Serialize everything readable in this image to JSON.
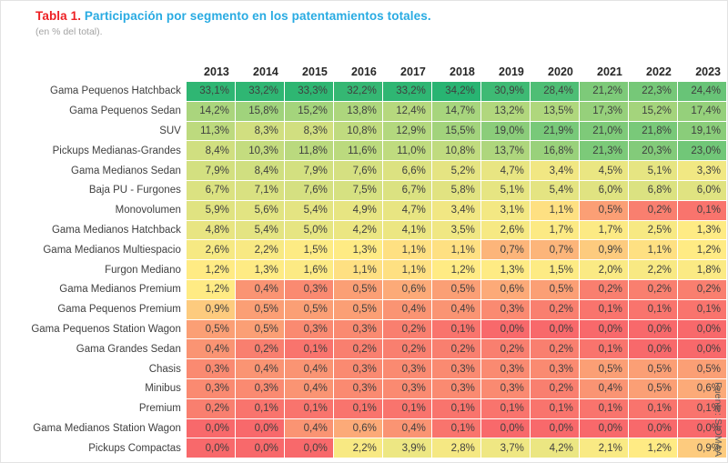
{
  "header": {
    "title_prefix": "Tabla 1.",
    "title_text": " Participación por segmento en los patentamientos totales.",
    "subtitle": "(en % del total)."
  },
  "footer": {
    "source": "Fuente: SIOMAA"
  },
  "colors": {
    "title_prefix": "#ed2024",
    "title_text": "#29abe2",
    "subtitle": "#a3a3a3",
    "source_text": "#5a5a5a",
    "cell_text": "#3f3f3f",
    "year_text": "#262626",
    "scale_min": "#F8696B",
    "scale_mid": "#FFEB84",
    "scale_max": "#28B472"
  },
  "chart_data": {
    "type": "heatmap",
    "title": "Tabla 1. Participación por segmento en los patentamientos totales.",
    "subtitle": "(en % del total).",
    "source": "Fuente: SIOMAA",
    "value_format": "percent_comma_1dp",
    "color_scale": {
      "min_value": 0.0,
      "mid_value": 1.2,
      "max_value": 34.2,
      "min_color": "#F8696B",
      "mid_color": "#FFEB84",
      "max_color": "#28B472"
    },
    "categories": [
      "2013",
      "2014",
      "2015",
      "2016",
      "2017",
      "2018",
      "2019",
      "2020",
      "2021",
      "2022",
      "2023"
    ],
    "rows": [
      {
        "label": "Gama Pequenos Hatchback",
        "values": [
          33.1,
          33.2,
          33.3,
          32.2,
          33.2,
          34.2,
          30.9,
          28.4,
          21.2,
          22.3,
          24.4
        ]
      },
      {
        "label": "Gama Pequenos Sedan",
        "values": [
          14.2,
          15.8,
          15.2,
          13.8,
          12.4,
          14.7,
          13.2,
          13.5,
          17.3,
          15.2,
          17.4
        ]
      },
      {
        "label": "SUV",
        "values": [
          11.3,
          8.3,
          8.3,
          10.8,
          12.9,
          15.5,
          19.0,
          21.9,
          21.0,
          21.8,
          19.1
        ]
      },
      {
        "label": "Pickups Medianas-Grandes",
        "values": [
          8.4,
          10.3,
          11.8,
          11.6,
          11.0,
          10.8,
          13.7,
          16.8,
          21.3,
          20.3,
          23.0
        ]
      },
      {
        "label": "Gama Medianos Sedan",
        "values": [
          7.9,
          8.4,
          7.9,
          7.6,
          6.6,
          5.2,
          4.7,
          3.4,
          4.5,
          5.1,
          3.3
        ]
      },
      {
        "label": "Baja PU - Furgones",
        "values": [
          6.7,
          7.1,
          7.6,
          7.5,
          6.7,
          5.8,
          5.1,
          5.4,
          6.0,
          6.8,
          6.0
        ]
      },
      {
        "label": "Monovolumen",
        "values": [
          5.9,
          5.6,
          5.4,
          4.9,
          4.7,
          3.4,
          3.1,
          1.1,
          0.5,
          0.2,
          0.1
        ]
      },
      {
        "label": "Gama Medianos Hatchback",
        "values": [
          4.8,
          5.4,
          5.0,
          4.2,
          4.1,
          3.5,
          2.6,
          1.7,
          1.7,
          2.5,
          1.3
        ]
      },
      {
        "label": "Gama Medianos Multiespacio",
        "values": [
          2.6,
          2.2,
          1.5,
          1.3,
          1.1,
          1.1,
          0.7,
          0.7,
          0.9,
          1.1,
          1.2
        ]
      },
      {
        "label": "Furgon Mediano",
        "values": [
          1.2,
          1.3,
          1.6,
          1.1,
          1.1,
          1.2,
          1.3,
          1.5,
          2.0,
          2.2,
          1.8
        ]
      },
      {
        "label": "Gama Medianos Premium",
        "values": [
          1.2,
          0.4,
          0.3,
          0.5,
          0.6,
          0.5,
          0.6,
          0.5,
          0.2,
          0.2,
          0.2
        ]
      },
      {
        "label": "Gama Pequenos Premium",
        "values": [
          0.9,
          0.5,
          0.5,
          0.5,
          0.4,
          0.4,
          0.3,
          0.2,
          0.1,
          0.1,
          0.1
        ]
      },
      {
        "label": "Gama Pequenos Station Wagon",
        "values": [
          0.5,
          0.5,
          0.3,
          0.3,
          0.2,
          0.1,
          0.0,
          0.0,
          0.0,
          0.0,
          0.0
        ]
      },
      {
        "label": "Gama Grandes Sedan",
        "values": [
          0.4,
          0.2,
          0.1,
          0.2,
          0.2,
          0.2,
          0.2,
          0.2,
          0.1,
          0.0,
          0.0
        ]
      },
      {
        "label": "Chasis",
        "values": [
          0.3,
          0.4,
          0.4,
          0.3,
          0.3,
          0.3,
          0.3,
          0.3,
          0.5,
          0.5,
          0.5
        ]
      },
      {
        "label": "Minibus",
        "values": [
          0.3,
          0.3,
          0.4,
          0.3,
          0.3,
          0.3,
          0.3,
          0.2,
          0.4,
          0.5,
          0.6
        ]
      },
      {
        "label": "Premium",
        "values": [
          0.2,
          0.1,
          0.1,
          0.1,
          0.1,
          0.1,
          0.1,
          0.1,
          0.1,
          0.1,
          0.1
        ]
      },
      {
        "label": "Gama Medianos Station Wagon",
        "values": [
          0.0,
          0.0,
          0.4,
          0.6,
          0.4,
          0.1,
          0.0,
          0.0,
          0.0,
          0.0,
          0.0
        ]
      },
      {
        "label": "Pickups Compactas",
        "values": [
          0.0,
          0.0,
          0.0,
          2.2,
          3.9,
          2.8,
          3.7,
          4.2,
          2.1,
          1.2,
          0.9
        ]
      }
    ]
  }
}
